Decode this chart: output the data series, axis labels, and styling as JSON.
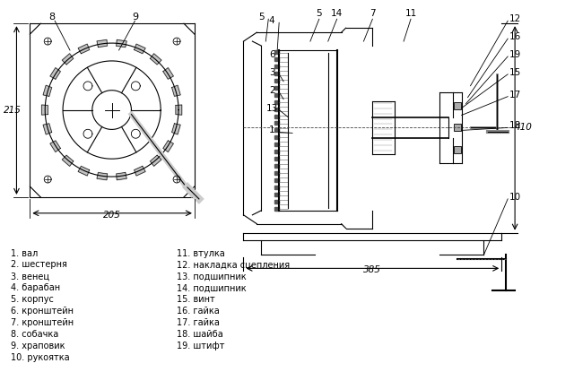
{
  "bg_color": "#ffffff",
  "line_color": "#000000",
  "legend_items_col1": [
    "1. вал",
    "2. шестерня",
    "3. венец",
    "4. барабан",
    "5. корпус",
    "6. кронштейн",
    "7. кронштейн",
    "8. собачка",
    "9. храповик",
    "10. рукоятка"
  ],
  "legend_items_col2": [
    "11. втулка",
    "12. накладка сцепления",
    "13. подшипник",
    "14. подшипник",
    "15. винт",
    "16. гайка",
    "17. гайка",
    "18. шайба",
    "19. штифт"
  ],
  "dim_205": "205",
  "dim_215": "215",
  "dim_385": "385",
  "dim_410": "410"
}
